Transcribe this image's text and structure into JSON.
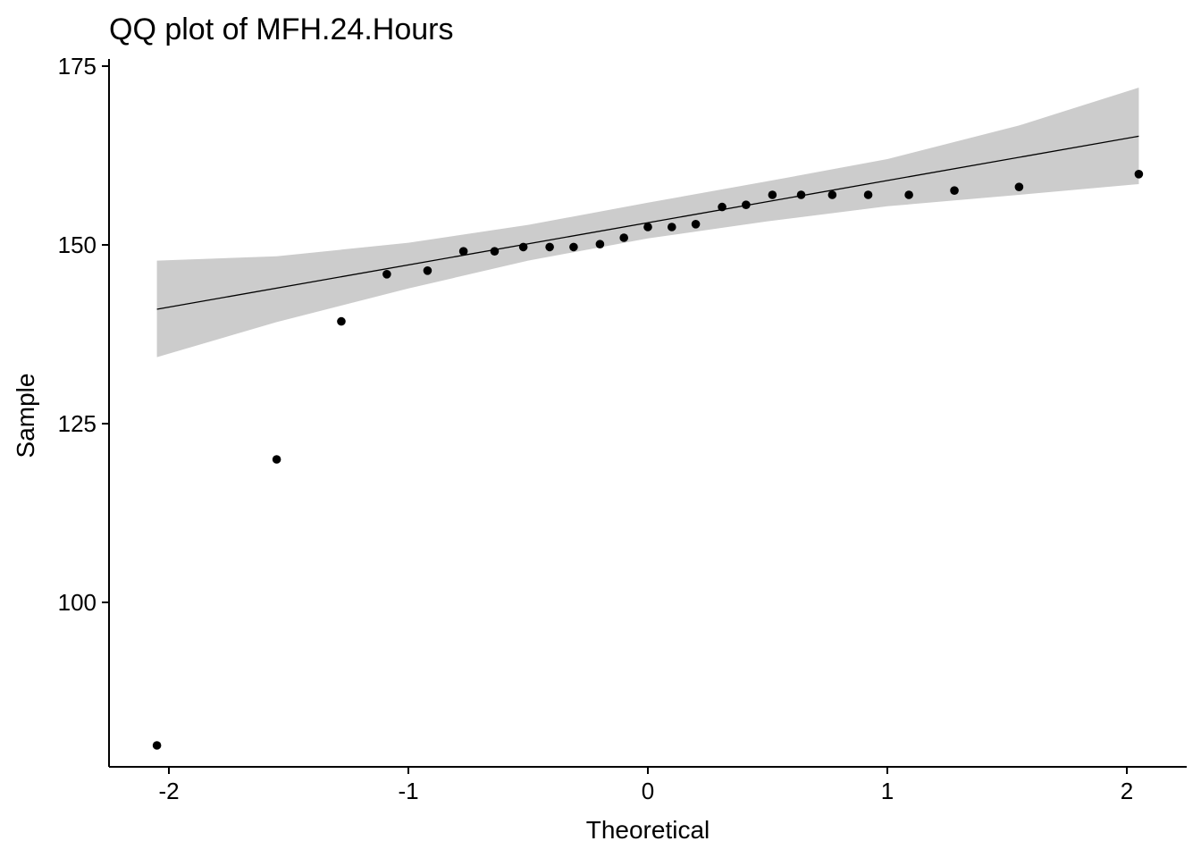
{
  "chart_data": {
    "type": "scatter",
    "title": "QQ plot of MFH.24.Hours",
    "xlabel": "Theoretical",
    "ylabel": "Sample",
    "xlim": [
      -2.25,
      2.25
    ],
    "ylim": [
      77,
      176
    ],
    "x_ticks": [
      -2,
      -1,
      0,
      1,
      2
    ],
    "x_tick_labels": [
      "-2",
      "-1",
      "0",
      "1",
      "2"
    ],
    "y_ticks": [
      100,
      125,
      150,
      175
    ],
    "y_tick_labels": [
      "100",
      "125",
      "150",
      "175"
    ],
    "grid": false,
    "legend": "none",
    "points": {
      "x": [
        -2.05,
        -1.55,
        -1.28,
        -1.09,
        -0.92,
        -0.77,
        -0.64,
        -0.52,
        -0.41,
        -0.31,
        -0.2,
        -0.1,
        0.0,
        0.1,
        0.2,
        0.31,
        0.41,
        0.52,
        0.64,
        0.77,
        0.92,
        1.09,
        1.28,
        1.55,
        2.05
      ],
      "y": [
        80,
        120,
        139.3,
        145.9,
        146.4,
        149.1,
        149.1,
        149.7,
        149.7,
        149.7,
        150.1,
        151,
        152.5,
        152.5,
        152.9,
        155.3,
        155.6,
        157,
        157,
        157,
        157,
        157,
        157.6,
        158.1,
        159.9
      ]
    },
    "reference_line": {
      "x": [
        -2.05,
        2.05
      ],
      "y": [
        141,
        165.2
      ]
    },
    "confidence_band": {
      "x": [
        -2.05,
        -1.55,
        -1.0,
        -0.5,
        0.0,
        0.5,
        1.0,
        1.55,
        2.05
      ],
      "lower": [
        134.3,
        139.2,
        143.9,
        147.8,
        150.9,
        153.3,
        155.4,
        157.0,
        158.5
      ],
      "upper": [
        147.8,
        148.4,
        150.3,
        152.8,
        155.9,
        158.9,
        162.0,
        166.7,
        172.0
      ]
    },
    "colors": {
      "points": "#000000",
      "line": "#000000",
      "band": "#cccccc",
      "axis": "#000000"
    }
  }
}
